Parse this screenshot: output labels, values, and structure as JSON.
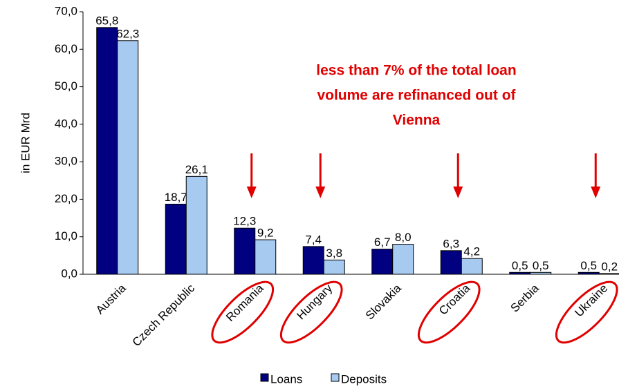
{
  "chart_data": {
    "type": "bar",
    "y_label": "in EUR Mrd",
    "annotation": [
      "less than 7% of the total loan",
      "volume are refinanced out of",
      "Vienna"
    ],
    "categories": [
      "Austria",
      "Czech Republic",
      "Romania",
      "Hungary",
      "Slovakia",
      "Croatia",
      "Serbia",
      "Ukraine"
    ],
    "highlight": [
      2,
      3,
      5,
      7
    ],
    "highlight_color": "#e00000",
    "series": [
      {
        "name": "Loans",
        "color": "#000080",
        "values": [
          65.8,
          18.7,
          12.3,
          7.4,
          6.7,
          6.3,
          0.5,
          0.5
        ],
        "value_labels": [
          "65,8",
          "18,7",
          "12,3",
          "7,4",
          "6,7",
          "6,3",
          "0,5",
          "0,5"
        ]
      },
      {
        "name": "Deposits",
        "color": "#a6caf0",
        "values": [
          62.3,
          26.1,
          9.2,
          3.8,
          8.0,
          4.2,
          0.5,
          0.2
        ],
        "value_labels": [
          "62,3",
          "26,1",
          "9,2",
          "3,8",
          "8,0",
          "4,2",
          "0,5",
          "0,2"
        ]
      }
    ],
    "ylim": [
      0,
      70
    ],
    "yticks": [
      {
        "value": 0,
        "label": "0,0"
      },
      {
        "value": 10,
        "label": "10,0"
      },
      {
        "value": 20,
        "label": "20,0"
      },
      {
        "value": 30,
        "label": "30,0"
      },
      {
        "value": 40,
        "label": "40,0"
      },
      {
        "value": 50,
        "label": "50,0"
      },
      {
        "value": 60,
        "label": "60,0"
      },
      {
        "value": 70,
        "label": "70,0"
      }
    ],
    "grid": false,
    "legend": "bottom"
  }
}
